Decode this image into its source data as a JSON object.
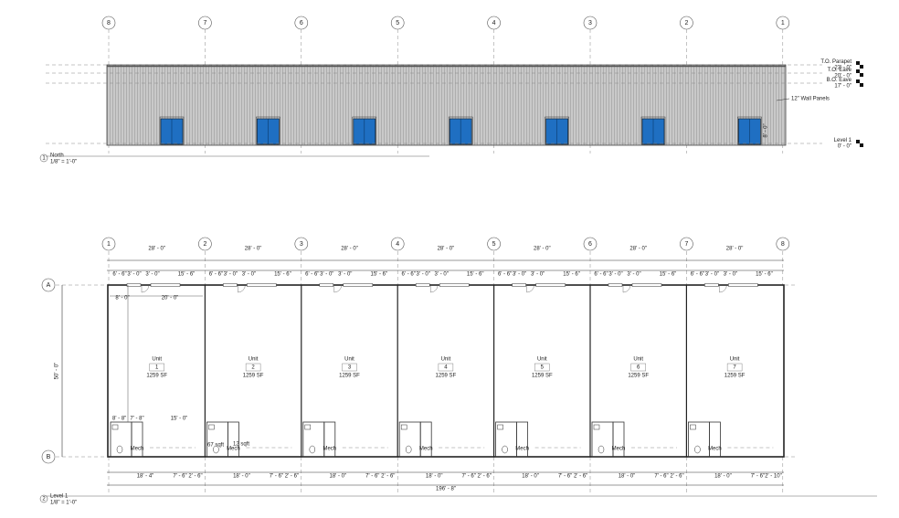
{
  "elevation": {
    "grid": [
      "8",
      "7",
      "6",
      "5",
      "4",
      "3",
      "2",
      "1"
    ],
    "levels": [
      {
        "name": "T.O. Parapet",
        "elev": "23' - 0\""
      },
      {
        "name": "T.O. Eave",
        "elev": "20' - 0\""
      },
      {
        "name": "B.O. Eave",
        "elev": "17' - 0\""
      },
      {
        "name": "Level 1",
        "elev": "0' - 0\""
      }
    ],
    "wall_note": "12\" Wall Panels",
    "door_dim": "8' - 0\"",
    "view": {
      "number": "1",
      "name": "North",
      "scale": "1/8\" = 1'-0\""
    }
  },
  "plan": {
    "grid_columns": [
      "1",
      "2",
      "3",
      "4",
      "5",
      "6",
      "7",
      "8"
    ],
    "grid_rows": [
      "A",
      "B"
    ],
    "depth_dim": "50' - 0\"",
    "bays": [
      {
        "dim": "28' - 0\"",
        "sub_dims": [
          "6' - 6\"",
          "3' - 0\"",
          "3' - 0\"",
          "15' - 6\""
        ],
        "unit": "Unit",
        "number": "1",
        "area": "1259 SF",
        "mech": "Mech",
        "bottom_dims": [
          "18' - 4\"",
          "7' - 6\"",
          "2' - 6\""
        ]
      },
      {
        "dim": "28' - 0\"",
        "sub_dims": [
          "6' - 6\"",
          "3' - 0\"",
          "3' - 0\"",
          "15' - 6\""
        ],
        "unit": "Unit",
        "number": "2",
        "area": "1259 SF",
        "mech": "Mech",
        "bottom_dims": [
          "18' - 0\"",
          "7' - 6\"",
          "2' - 6\""
        ]
      },
      {
        "dim": "28' - 0\"",
        "sub_dims": [
          "6' - 6\"",
          "3' - 0\"",
          "3' - 0\"",
          "15' - 6\""
        ],
        "unit": "Unit",
        "number": "3",
        "area": "1259 SF",
        "mech": "Mech",
        "bottom_dims": [
          "18' - 0\"",
          "7' - 6\"",
          "2' - 6\""
        ]
      },
      {
        "dim": "28' - 0\"",
        "sub_dims": [
          "6' - 6\"",
          "3' - 0\"",
          "3' - 0\"",
          "15' - 6\""
        ],
        "unit": "Unit",
        "number": "4",
        "area": "1259 SF",
        "mech": "Mech",
        "bottom_dims": [
          "18' - 0\"",
          "7' - 6\"",
          "2' - 6\""
        ]
      },
      {
        "dim": "28' - 0\"",
        "sub_dims": [
          "6' - 6\"",
          "3' - 0\"",
          "3' - 0\"",
          "15' - 6\""
        ],
        "unit": "Unit",
        "number": "5",
        "area": "1259 SF",
        "mech": "Mech",
        "bottom_dims": [
          "18' - 0\"",
          "7' - 6\"",
          "2' - 6\""
        ]
      },
      {
        "dim": "28' - 0\"",
        "sub_dims": [
          "6' - 6\"",
          "3' - 0\"",
          "3' - 0\"",
          "15' - 6\""
        ],
        "unit": "Unit",
        "number": "6",
        "area": "1259 SF",
        "mech": "Mech",
        "bottom_dims": [
          "18' - 0\"",
          "7' - 6\"",
          "2' - 6\""
        ]
      },
      {
        "dim": "28' - 0\"",
        "sub_dims": [
          "6' - 6\"",
          "3' - 0\"",
          "3' - 0\"",
          "15' - 6\""
        ],
        "unit": "Unit",
        "number": "7",
        "area": "1259 SF",
        "mech": "Mech",
        "bottom_dims": [
          "18' - 0\"",
          "7' - 6\"",
          "2' - 10\""
        ]
      }
    ],
    "unit1_dims": {
      "left": "8' - 0\"",
      "right": "20' - 0\"",
      "rest_a": "8' - 8\"",
      "rest_b": "7' - 8\"",
      "rest_c": "15' - 0\""
    },
    "room_areas": [
      "67 sqft",
      "12 sqft"
    ],
    "total_dim": "196' - 8\"",
    "view": {
      "number": "2",
      "name": "Level 1",
      "scale": "1/8\" = 1'-0\""
    }
  }
}
